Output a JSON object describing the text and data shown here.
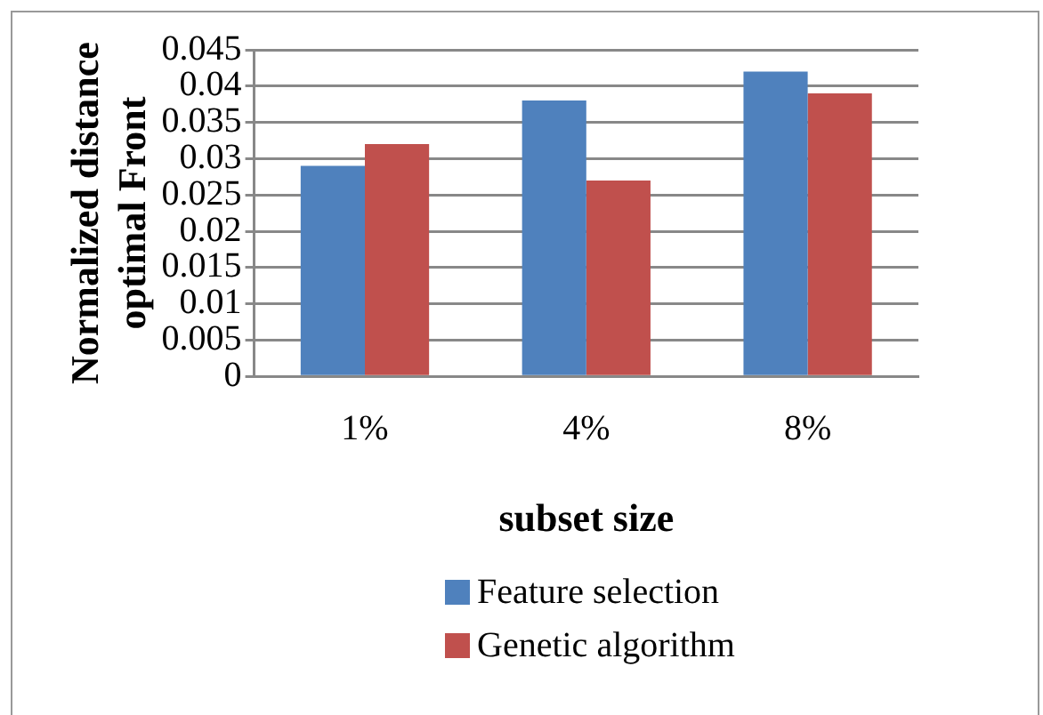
{
  "chart_data": {
    "type": "bar",
    "xlabel": "subset size",
    "ylabel": "Normalized distance\noptimal Front",
    "categories": [
      "1%",
      "4%",
      "8%"
    ],
    "series": [
      {
        "name": "Feature selection",
        "color": "#4f81bd",
        "values": [
          0.029,
          0.038,
          0.042
        ]
      },
      {
        "name": "Genetic algorithm",
        "color": "#c0504d",
        "values": [
          0.032,
          0.027,
          0.039
        ]
      }
    ],
    "ylim": [
      0,
      0.045
    ],
    "yticks": [
      0,
      0.005,
      0.01,
      0.015,
      0.02,
      0.025,
      0.03,
      0.035,
      0.04,
      0.045
    ],
    "grid": "y",
    "legend": "bottom"
  }
}
